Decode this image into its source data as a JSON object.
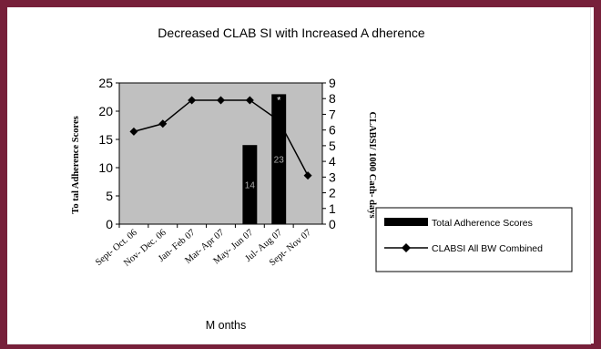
{
  "colors": {
    "frame": "#77203a",
    "plot_area": "#c0c0c0",
    "bar": "#000000",
    "line": "#000000",
    "bar_label": "#aaaaaa"
  },
  "chart_data": {
    "type": "bar",
    "title": "Decreased CLAB SI with Increased A dherence",
    "xlabel": "M onths",
    "ylabel": "To tal  Adherence  Scores",
    "y2label": "CLABSI/ 1000  Cath-  days",
    "categories": [
      "Sept- Oct. 06",
      "Nov- Dec. 06",
      "Jan- Feb 07",
      "Mar- Apr 07",
      "May- Jun 07",
      "Jul- Aug 07",
      "Sept- Nov 07"
    ],
    "ylim": [
      0,
      25
    ],
    "y_ticks": [
      "0",
      "5",
      "10",
      "15",
      "20",
      "25"
    ],
    "y2lim": [
      0,
      9
    ],
    "y2_ticks": [
      "0",
      "1",
      "2",
      "3",
      "4",
      "5",
      "6",
      "7",
      "8",
      "9"
    ],
    "grid": false,
    "legend_position": "right",
    "series": [
      {
        "name": "Total Adherence Scores",
        "kind": "bar",
        "axis": "left",
        "values": [
          null,
          null,
          null,
          null,
          14,
          23,
          null
        ],
        "labels": [
          "",
          "",
          "",
          "",
          "14",
          "23",
          ""
        ]
      },
      {
        "name": "CLABSI All BW Combined",
        "kind": "line",
        "axis": "right",
        "marker": "diamond",
        "values": [
          5.9,
          6.4,
          7.9,
          7.9,
          7.9,
          6.6,
          3.1
        ]
      }
    ],
    "annotations": [
      {
        "text": "*",
        "category": "Jul- Aug 07"
      }
    ]
  }
}
